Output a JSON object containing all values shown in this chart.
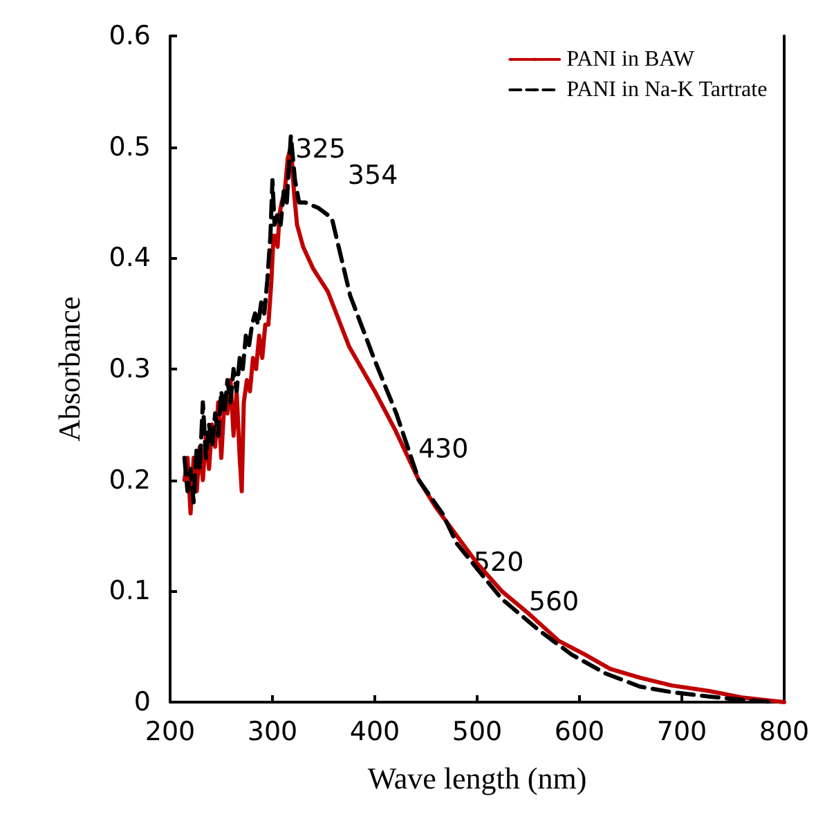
{
  "chart_data": {
    "type": "line",
    "xlabel": "Wave length (nm)",
    "ylabel": "Absorbance",
    "xlim": [
      200,
      800
    ],
    "xticks": [
      200,
      300,
      400,
      500,
      600,
      700,
      800
    ],
    "ylim": [
      0,
      0.6
    ],
    "yticks": [
      0,
      0.1,
      0.2,
      0.3,
      0.4,
      0.5,
      0.6
    ],
    "grid": false,
    "legend": "top right",
    "marker": "none",
    "series": [
      {
        "name": "PANI in BAW",
        "color": "#c00000",
        "line_style": "solid",
        "x": [
          214,
          217,
          220,
          223,
          226,
          229,
          232,
          235,
          238,
          241,
          244,
          247,
          250,
          253,
          256,
          259,
          262,
          265,
          268,
          270,
          272,
          275,
          278,
          281,
          284,
          287,
          290,
          293,
          296,
          299,
          301,
          303,
          305,
          307,
          309,
          312,
          315,
          318,
          321,
          324,
          330,
          340,
          354,
          375,
          400,
          420,
          443,
          460,
          480,
          500,
          524,
          550,
          580,
          605,
          630,
          659,
          690,
          727,
          760,
          800
        ],
        "values": [
          0.2,
          0.22,
          0.17,
          0.22,
          0.19,
          0.23,
          0.2,
          0.24,
          0.21,
          0.25,
          0.23,
          0.27,
          0.22,
          0.27,
          0.26,
          0.29,
          0.24,
          0.28,
          0.22,
          0.19,
          0.27,
          0.29,
          0.28,
          0.31,
          0.3,
          0.33,
          0.31,
          0.34,
          0.34,
          0.38,
          0.42,
          0.42,
          0.41,
          0.44,
          0.45,
          0.46,
          0.49,
          0.5,
          0.46,
          0.43,
          0.41,
          0.39,
          0.37,
          0.32,
          0.28,
          0.245,
          0.2,
          0.175,
          0.15,
          0.125,
          0.1,
          0.08,
          0.055,
          0.043,
          0.03,
          0.022,
          0.015,
          0.01,
          0.004,
          0
        ]
      },
      {
        "name": "PANI in Na-K Tartrate",
        "color": "#000000",
        "line_style": "dashed",
        "x": [
          214,
          217,
          220,
          223,
          226,
          229,
          232,
          235,
          238,
          241,
          244,
          247,
          250,
          253,
          256,
          259,
          262,
          265,
          268,
          271,
          274,
          277,
          280,
          283,
          286,
          289,
          292,
          295,
          298,
          300,
          302,
          305,
          308,
          311,
          314,
          318,
          322,
          326,
          332,
          345,
          358,
          376,
          399,
          421,
          443,
          466,
          480,
          500,
          524,
          560,
          592,
          625,
          659,
          690,
          727,
          760,
          790
        ],
        "values": [
          0.22,
          0.19,
          0.21,
          0.18,
          0.23,
          0.21,
          0.27,
          0.22,
          0.25,
          0.23,
          0.26,
          0.24,
          0.28,
          0.26,
          0.29,
          0.27,
          0.3,
          0.28,
          0.31,
          0.3,
          0.33,
          0.32,
          0.34,
          0.35,
          0.34,
          0.36,
          0.35,
          0.38,
          0.42,
          0.47,
          0.43,
          0.44,
          0.43,
          0.46,
          0.45,
          0.51,
          0.47,
          0.45,
          0.45,
          0.445,
          0.436,
          0.366,
          0.31,
          0.26,
          0.2,
          0.17,
          0.143,
          0.12,
          0.093,
          0.065,
          0.043,
          0.026,
          0.014,
          0.009,
          0.005,
          0.002,
          0
        ]
      }
    ],
    "annotations": [
      "325",
      "354",
      "430",
      "520",
      "560"
    ]
  }
}
